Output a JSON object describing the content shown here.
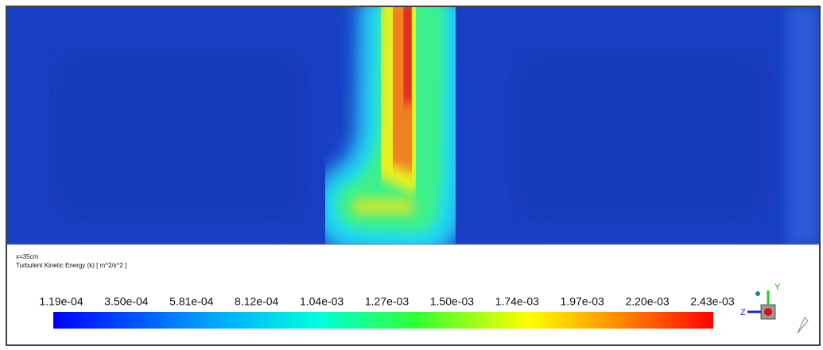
{
  "plot": {
    "slice": "x=35cm",
    "variable": "Turbulent Kinetic Energy (k) [ m^2/s^2 ]"
  },
  "colorbar": {
    "ticks": [
      "1.19e-04",
      "3.50e-04",
      "5.81e-04",
      "8.12e-04",
      "1.04e-03",
      "1.27e-03",
      "1.50e-03",
      "1.74e-03",
      "1.97e-03",
      "2.20e-03",
      "2.43e-03"
    ]
  },
  "triad": {
    "y_label": "Y",
    "z_label": "Z"
  }
}
